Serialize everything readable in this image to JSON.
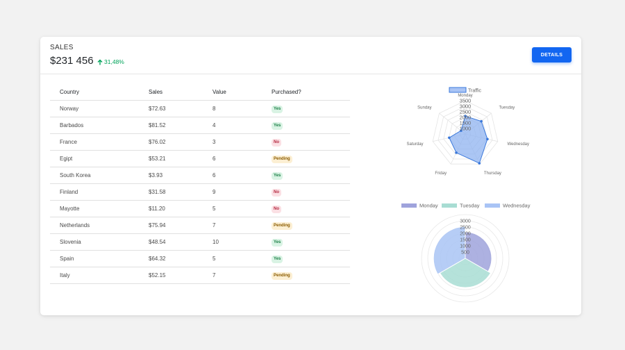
{
  "header": {
    "title": "SALES",
    "amount": "$231 456",
    "growth": "31,48%",
    "details_label": "DETAILS"
  },
  "table": {
    "columns": [
      "Country",
      "Sales",
      "Value",
      "Purchased?"
    ],
    "rows": [
      {
        "country": "Norway",
        "sales": "$72.63",
        "value": "8",
        "purchased": "Yes",
        "status": "yes"
      },
      {
        "country": "Barbados",
        "sales": "$81.52",
        "value": "4",
        "purchased": "Yes",
        "status": "yes"
      },
      {
        "country": "France",
        "sales": "$76.02",
        "value": "3",
        "purchased": "No",
        "status": "no"
      },
      {
        "country": "Egipt",
        "sales": "$53.21",
        "value": "6",
        "purchased": "Pending",
        "status": "pending"
      },
      {
        "country": "South Korea",
        "sales": "$3.93",
        "value": "6",
        "purchased": "Yes",
        "status": "yes"
      },
      {
        "country": "Finland",
        "sales": "$31.58",
        "value": "9",
        "purchased": "No",
        "status": "no"
      },
      {
        "country": "Mayotte",
        "sales": "$11.20",
        "value": "5",
        "purchased": "No",
        "status": "no"
      },
      {
        "country": "Netherlands",
        "sales": "$75.94",
        "value": "7",
        "purchased": "Pending",
        "status": "pending"
      },
      {
        "country": "Slovenia",
        "sales": "$48.54",
        "value": "10",
        "purchased": "Yes",
        "status": "yes"
      },
      {
        "country": "Spain",
        "sales": "$64.32",
        "value": "5",
        "purchased": "Yes",
        "status": "yes"
      },
      {
        "country": "Italy",
        "sales": "$52.15",
        "value": "7",
        "purchased": "Pending",
        "status": "pending"
      }
    ]
  },
  "colors": {
    "accent": "#1266f1",
    "growth": "#00a35a",
    "radar_fill": "#8fb3f0",
    "radar_line": "#3a78db",
    "monday": "#9fa3dc",
    "tuesday": "#a8ddd3",
    "wednesday": "#a9c4f5"
  },
  "chart_data": [
    {
      "type": "radar",
      "legend": [
        "Traffic"
      ],
      "categories": [
        "Monday",
        "Tuesday",
        "Wednesday",
        "Thursday",
        "Friday",
        "Saturday",
        "Sunday"
      ],
      "series": [
        {
          "name": "Traffic",
          "values": [
            2112,
            2343,
            2545,
            3423,
            2365,
            1985,
            987
          ]
        }
      ],
      "ticks": [
        "1000",
        "1500",
        "2000",
        "2500",
        "3000",
        "3500"
      ],
      "r_range": [
        500,
        3500
      ]
    },
    {
      "type": "polarArea",
      "legend": [
        "Monday",
        "Tuesday",
        "Wednesday"
      ],
      "categories": [
        "Monday",
        "Tuesday",
        "Wednesday"
      ],
      "values": [
        2112,
        2343,
        2545
      ],
      "ticks": [
        "500",
        "1000",
        "1500",
        "2000",
        "2500",
        "3000"
      ],
      "r_range": [
        0,
        3500
      ]
    }
  ]
}
